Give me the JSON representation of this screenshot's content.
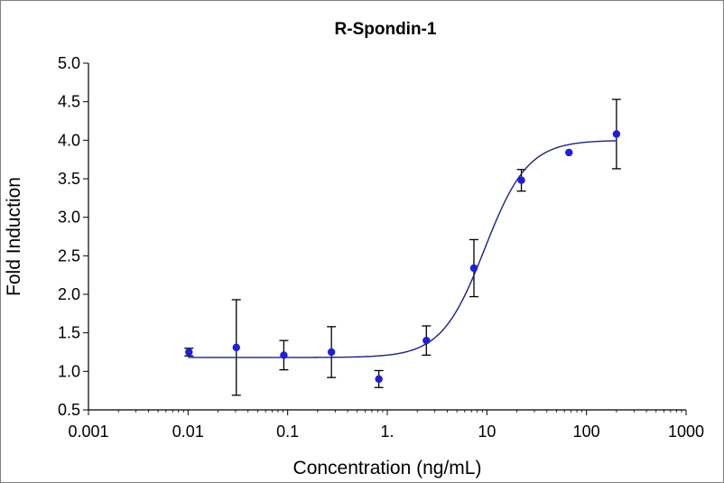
{
  "chart_data": {
    "type": "scatter",
    "title": "R-Spondin-1",
    "xlabel": "Concentration (ng/mL)",
    "ylabel": "Fold Induction",
    "x_scale": "log",
    "xlim": [
      0.001,
      1000
    ],
    "ylim": [
      0.5,
      5.0
    ],
    "x_ticks": [
      0.001,
      0.01,
      0.1,
      1,
      10,
      100,
      1000
    ],
    "x_tick_labels": [
      "0.001",
      "0.01",
      "0.1",
      "1.",
      "10",
      "100",
      "1000"
    ],
    "y_ticks": [
      0.5,
      1.0,
      1.5,
      2.0,
      2.5,
      3.0,
      3.5,
      4.0,
      4.5,
      5.0
    ],
    "y_tick_labels": [
      "0.5",
      "1.0",
      "1.5",
      "2.0",
      "2.5",
      "3.0",
      "3.5",
      "4.0",
      "4.5",
      "5.0"
    ],
    "grid": false,
    "legend": "none",
    "points": [
      {
        "x": 0.0102,
        "y": 1.25,
        "err": 0.05
      },
      {
        "x": 0.0305,
        "y": 1.31,
        "err": 0.62
      },
      {
        "x": 0.0915,
        "y": 1.21,
        "err": 0.19
      },
      {
        "x": 0.275,
        "y": 1.25,
        "err": 0.33
      },
      {
        "x": 0.823,
        "y": 0.9,
        "err": 0.11
      },
      {
        "x": 2.47,
        "y": 1.4,
        "err": 0.19
      },
      {
        "x": 7.41,
        "y": 2.34,
        "err": 0.37
      },
      {
        "x": 22.2,
        "y": 3.48,
        "err": 0.14
      },
      {
        "x": 66.7,
        "y": 3.84,
        "err": 0
      },
      {
        "x": 200,
        "y": 4.08,
        "err": 0.45
      }
    ],
    "fit_curve": {
      "bottom": 1.18,
      "top": 4.0,
      "ec50": 9.5,
      "hill": 2.0,
      "x_range": [
        0.01,
        200
      ]
    },
    "colors": {
      "points": "#1f1fd6",
      "curve": "#1a237e",
      "error_bars": "#000000",
      "axes": "#000000"
    }
  }
}
